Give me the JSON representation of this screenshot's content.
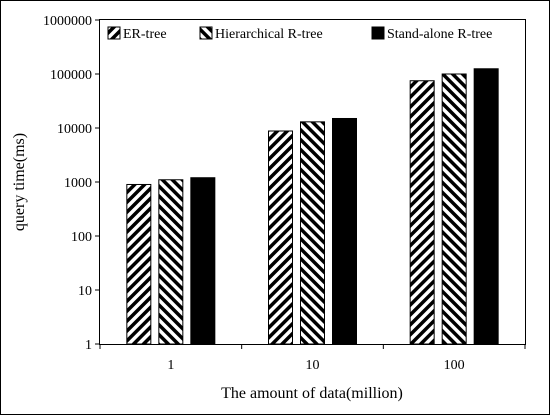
{
  "chart_data": {
    "type": "bar",
    "xlabel": "The amount of data(million)",
    "ylabel": "query time(ms)",
    "y_scale": "log",
    "ylim": [
      1,
      1000000
    ],
    "y_ticks": [
      "1",
      "10",
      "100",
      "1000",
      "10000",
      "100000",
      "1000000"
    ],
    "y_tick_values": [
      1,
      10,
      100,
      1000,
      10000,
      100000,
      1000000
    ],
    "categories": [
      "1",
      "10",
      "100"
    ],
    "legend_position": "top",
    "grid": false,
    "series": [
      {
        "name": "ER-tree",
        "pattern": "diagonal-hatch-forward",
        "color": "#000000",
        "values": [
          900,
          8800,
          75000
        ]
      },
      {
        "name": "Hierarchical R-tree",
        "pattern": "diagonal-hatch-backward",
        "color": "#000000",
        "values": [
          1100,
          13000,
          100000
        ]
      },
      {
        "name": "Stand-alone R-tree",
        "pattern": "solid",
        "color": "#000000",
        "values": [
          1200,
          15000,
          125000
        ]
      }
    ]
  }
}
